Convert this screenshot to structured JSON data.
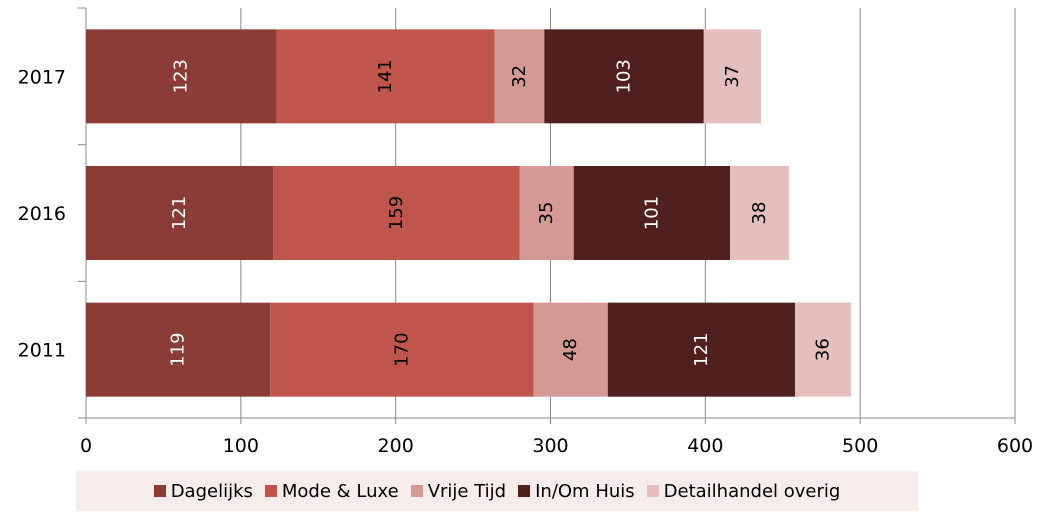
{
  "chart_data": {
    "type": "bar",
    "orientation": "horizontal",
    "stacked": true,
    "categories": [
      "2017",
      "2016",
      "2011"
    ],
    "series": [
      {
        "name": "Dagelijks",
        "color": "#8b3c36",
        "values": [
          123,
          121,
          119
        ]
      },
      {
        "name": "Mode & Luxe",
        "color": "#c0554d",
        "values": [
          141,
          159,
          170
        ]
      },
      {
        "name": "Vrije Tijd",
        "color": "#d49895",
        "values": [
          32,
          35,
          48
        ]
      },
      {
        "name": "In/Om Huis",
        "color": "#4f201e",
        "values": [
          103,
          101,
          121
        ]
      },
      {
        "name": "Detailhandel overig",
        "color": "#e5bfbd",
        "values": [
          37,
          38,
          36
        ]
      }
    ],
    "label_colors": [
      "#ffffff",
      "#000000",
      "#000000",
      "#ffffff",
      "#000000"
    ],
    "xlim": [
      0,
      600
    ],
    "xticks": [
      "0",
      "100",
      "200",
      "300",
      "400",
      "500",
      "600"
    ],
    "grid": true,
    "legend_position": "bottom"
  }
}
